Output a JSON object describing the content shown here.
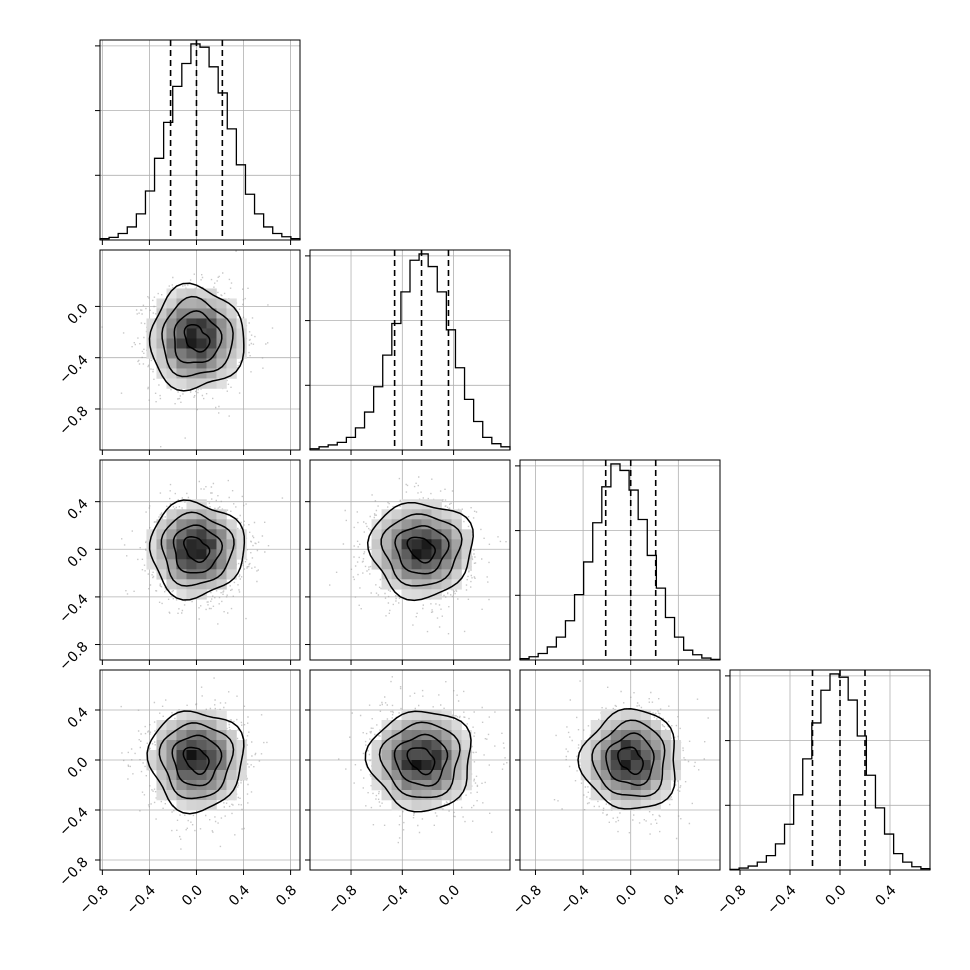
{
  "chart_data": {
    "type": "corner",
    "n_params": 4,
    "quantiles": [
      0.16,
      0.5,
      0.84
    ],
    "grid": true,
    "colors": {
      "line": "#000000",
      "grid": "#b0b0b0",
      "points": "#9a9a9a",
      "density_dark": "#2a2a2a"
    },
    "params": [
      {
        "name": "",
        "mean": 0.0,
        "sd": 0.2,
        "quantile_lines": [
          -0.22,
          0.0,
          0.22
        ],
        "range": [
          -0.82,
          0.88
        ],
        "ticks": [
          -0.8,
          -0.4,
          0.0,
          0.4,
          0.8
        ],
        "tick_labels": [
          "−0.8",
          "−0.4",
          "0.0",
          "0.4",
          "0.8"
        ],
        "hist_counts": [
          2,
          4,
          10,
          20,
          40,
          75,
          125,
          180,
          235,
          270,
          300,
          295,
          265,
          225,
          170,
          115,
          70,
          40,
          20,
          10,
          5,
          2
        ]
      },
      {
        "name": "",
        "mean": -0.25,
        "sd": 0.2,
        "quantile_lines": [
          -0.46,
          -0.25,
          -0.04
        ],
        "range": [
          -1.12,
          0.44
        ],
        "ticks": [
          -0.8,
          -0.4,
          0.0
        ],
        "tick_labels": [
          "−0.8",
          "−0.4",
          "0.0"
        ],
        "hist_counts": [
          2,
          5,
          8,
          12,
          20,
          35,
          60,
          100,
          150,
          200,
          250,
          300,
          310,
          290,
          250,
          190,
          130,
          80,
          45,
          20,
          10,
          5
        ]
      },
      {
        "name": "",
        "mean": 0.0,
        "sd": 0.2,
        "quantile_lines": [
          -0.21,
          0.0,
          0.21
        ],
        "range": [
          -0.93,
          0.75
        ],
        "ticks": [
          -0.8,
          -0.4,
          0.0,
          0.4
        ],
        "tick_labels": [
          "−0.8",
          "−0.4",
          "0.0",
          "0.4"
        ],
        "hist_counts": [
          2,
          5,
          10,
          20,
          35,
          60,
          100,
          150,
          210,
          265,
          300,
          290,
          260,
          215,
          160,
          110,
          65,
          35,
          15,
          8,
          3,
          1
        ]
      },
      {
        "name": "",
        "mean": 0.0,
        "sd": 0.2,
        "quantile_lines": [
          -0.22,
          0.0,
          0.2
        ],
        "range": [
          -0.88,
          0.72
        ],
        "ticks": [
          -0.8,
          -0.4,
          0.0,
          0.4
        ],
        "tick_labels": [
          "−0.8",
          "−0.4",
          "0.0",
          "0.4"
        ],
        "hist_counts": [
          1,
          3,
          6,
          12,
          22,
          40,
          70,
          115,
          170,
          225,
          275,
          300,
          295,
          260,
          205,
          145,
          95,
          55,
          25,
          12,
          5,
          2
        ]
      }
    ],
    "contour_levels_sigma": [
      0.5,
      1.0,
      1.5,
      2.0
    ]
  }
}
